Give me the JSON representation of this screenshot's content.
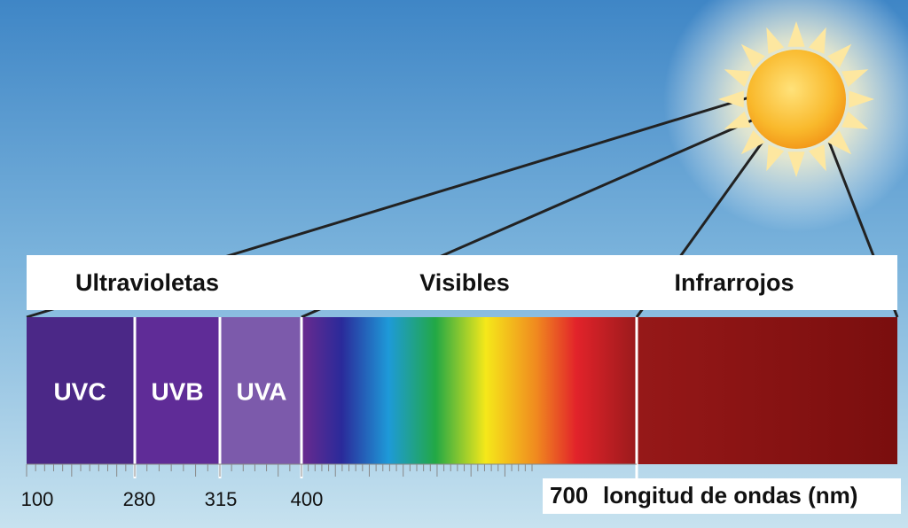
{
  "header": {
    "groups": [
      "Ultravioletas",
      "Visibles",
      "Infrarrojos"
    ]
  },
  "bands": [
    "UVC",
    "UVB",
    "UVA"
  ],
  "axis": {
    "ticks": [
      100,
      280,
      315,
      400,
      700
    ],
    "label": "longitud de ondas (nm)"
  }
}
